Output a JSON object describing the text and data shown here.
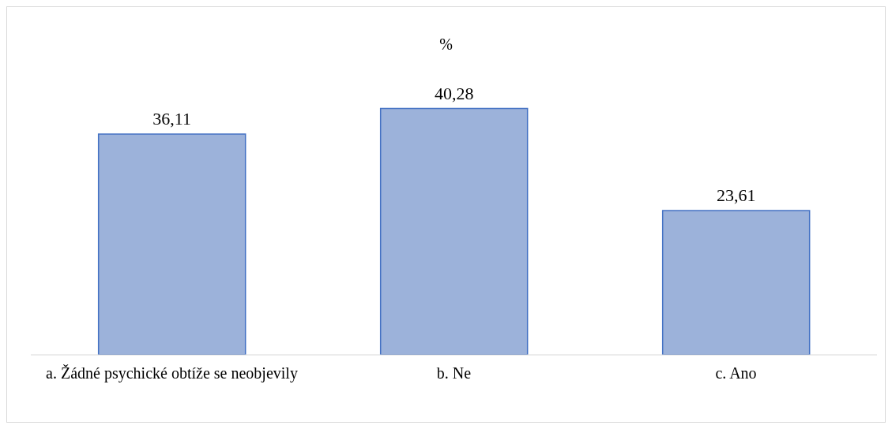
{
  "chart_data": {
    "type": "bar",
    "title": "%",
    "categories": [
      "a. Žádné psychické obtíže se neobjevily",
      "b. Ne",
      "c. Ano"
    ],
    "values": [
      36.11,
      40.28,
      23.61
    ],
    "color": "#9cb2da",
    "value_labels": [
      "36,11",
      "40,28",
      "23,61"
    ],
    "tick_labels": "x"
  }
}
